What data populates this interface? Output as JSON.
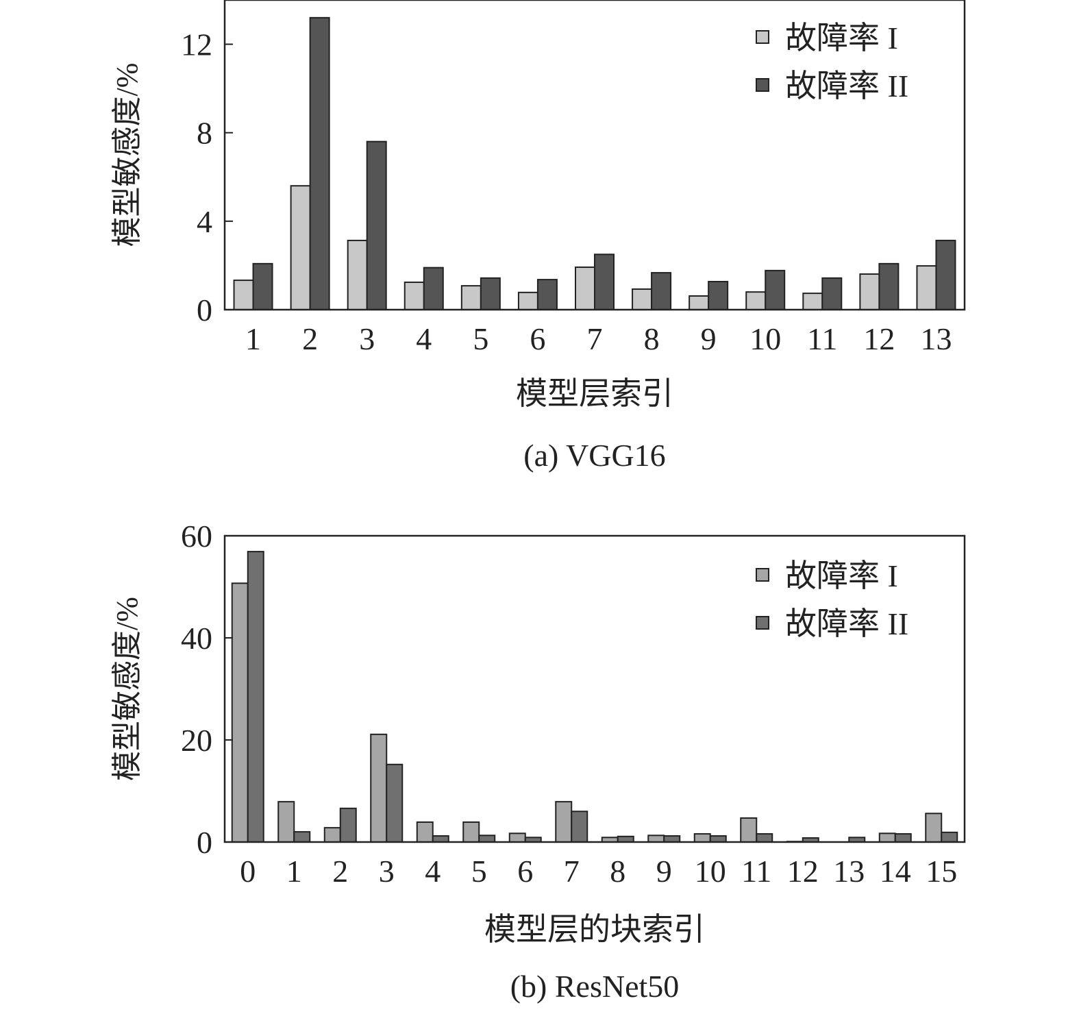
{
  "chart_data": [
    {
      "type": "bar",
      "title": "",
      "caption": "(a)  VGG16",
      "xlabel": "模型层索引",
      "ylabel": "模型敏感度/%",
      "ylim": [
        0,
        14
      ],
      "yticks": [
        0,
        4,
        8,
        12
      ],
      "legend_position": "top-right",
      "categories": [
        "1",
        "2",
        "3",
        "4",
        "5",
        "6",
        "7",
        "8",
        "9",
        "10",
        "11",
        "12",
        "13"
      ],
      "series": [
        {
          "name": "故障率 I",
          "color": "#c8c8c8",
          "values": [
            1.33,
            5.6,
            3.13,
            1.24,
            1.08,
            0.78,
            1.92,
            0.93,
            0.62,
            0.8,
            0.74,
            1.61,
            1.98
          ]
        },
        {
          "name": "故障率 II",
          "color": "#555555",
          "values": [
            2.08,
            13.2,
            7.6,
            1.9,
            1.43,
            1.36,
            2.5,
            1.67,
            1.27,
            1.77,
            1.43,
            2.08,
            3.13
          ]
        }
      ]
    },
    {
      "type": "bar",
      "title": "",
      "caption": "(b)  ResNet50",
      "xlabel": "模型层的块索引",
      "ylabel": "模型敏感度/%",
      "ylim": [
        0,
        60
      ],
      "yticks": [
        0,
        20,
        40,
        60
      ],
      "legend_position": "top-right",
      "categories": [
        "0",
        "1",
        "2",
        "3",
        "4",
        "5",
        "6",
        "7",
        "8",
        "9",
        "10",
        "11",
        "12",
        "13",
        "14",
        "15"
      ],
      "series": [
        {
          "name": "故障率 I",
          "color": "#a6a6a6",
          "values": [
            50.7,
            7.9,
            2.8,
            21.1,
            3.9,
            3.9,
            1.7,
            7.9,
            0.9,
            1.3,
            1.6,
            4.7,
            0.1,
            0,
            1.7,
            5.6
          ]
        },
        {
          "name": "故障率 II",
          "color": "#707070",
          "values": [
            56.9,
            2.0,
            6.6,
            15.2,
            1.2,
            1.3,
            0.9,
            6.0,
            1.1,
            1.2,
            1.2,
            1.6,
            0.8,
            0.9,
            1.6,
            1.9
          ]
        }
      ]
    }
  ]
}
